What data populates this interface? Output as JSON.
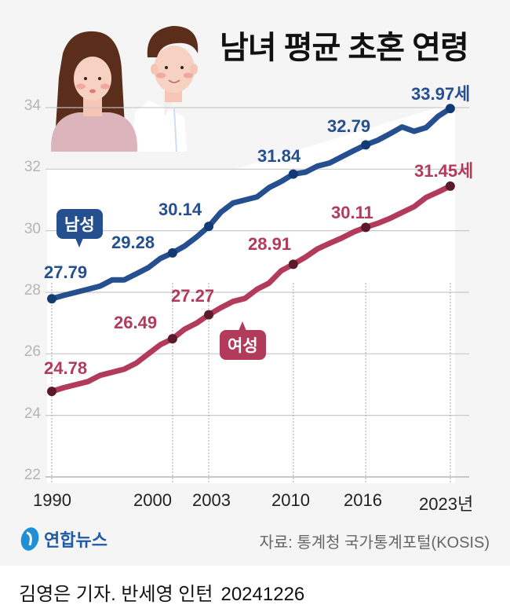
{
  "title": "남녀 평균 초혼 연령",
  "colors": {
    "male": "#264f8f",
    "female": "#b23a5a",
    "male_marker": "#123a73",
    "female_marker": "#5a1a2a",
    "grid": "#c8c8c8",
    "background": "#f5f5f5"
  },
  "legend": {
    "male": "남성",
    "female": "여성"
  },
  "y_ticks": [
    "34",
    "32",
    "30",
    "28",
    "26",
    "24",
    "22"
  ],
  "x_ticks": [
    "1990",
    "2000",
    "2003",
    "2010",
    "2016",
    "2023년"
  ],
  "labels": {
    "male": [
      "27.79",
      "29.28",
      "30.14",
      "31.84",
      "32.79",
      "33.97세"
    ],
    "female": [
      "24.78",
      "26.49",
      "27.27",
      "28.91",
      "30.11",
      "31.45세"
    ]
  },
  "footer": {
    "logo": "연합뉴스",
    "source": "자료: 통계청 국가통계포털(KOSIS)",
    "credit": "김영은 기자. 반세영 인턴",
    "date": "20241226"
  },
  "chart_data": {
    "type": "line",
    "title": "남녀 평균 초혼 연령",
    "xlabel": "년",
    "ylabel": "세",
    "ylim": [
      22,
      34
    ],
    "grid": true,
    "legend_position": "inline callouts",
    "x": [
      1990,
      1991,
      1992,
      1993,
      1994,
      1995,
      1996,
      1997,
      1998,
      1999,
      2000,
      2001,
      2002,
      2003,
      2004,
      2005,
      2006,
      2007,
      2008,
      2009,
      2010,
      2011,
      2012,
      2013,
      2014,
      2015,
      2016,
      2017,
      2018,
      2019,
      2020,
      2021,
      2022,
      2023
    ],
    "highlighted_x": [
      1990,
      2000,
      2003,
      2010,
      2016,
      2023
    ],
    "series": [
      {
        "name": "남성",
        "values": [
          27.79,
          27.9,
          28.0,
          28.1,
          28.2,
          28.4,
          28.4,
          28.6,
          28.8,
          29.1,
          29.28,
          29.5,
          29.8,
          30.14,
          30.6,
          30.9,
          31.0,
          31.1,
          31.4,
          31.6,
          31.84,
          31.9,
          32.1,
          32.2,
          32.4,
          32.6,
          32.79,
          32.94,
          33.15,
          33.37,
          33.23,
          33.35,
          33.72,
          33.97
        ]
      },
      {
        "name": "여성",
        "values": [
          24.78,
          24.9,
          25.0,
          25.1,
          25.3,
          25.4,
          25.5,
          25.7,
          26.0,
          26.3,
          26.49,
          26.8,
          27.0,
          27.27,
          27.5,
          27.7,
          27.8,
          28.1,
          28.3,
          28.7,
          28.91,
          29.14,
          29.41,
          29.59,
          29.76,
          29.96,
          30.11,
          30.24,
          30.4,
          30.59,
          30.78,
          31.08,
          31.26,
          31.45
        ]
      }
    ]
  }
}
